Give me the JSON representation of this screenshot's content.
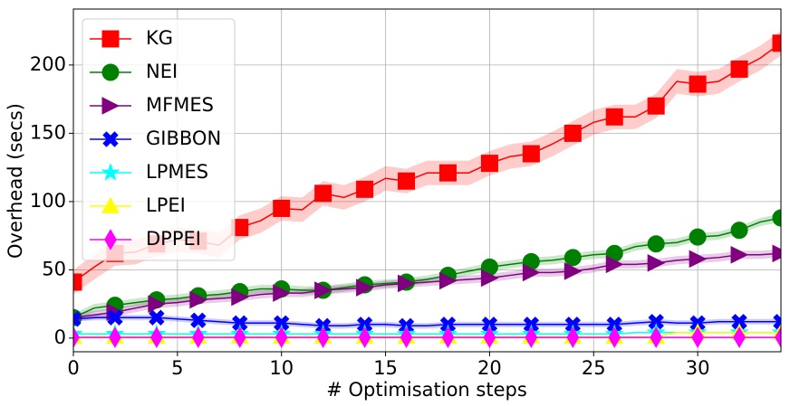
{
  "chart_data": {
    "type": "line",
    "xlabel": "# Optimisation steps",
    "ylabel": "Overhead (secs)",
    "x": [
      0,
      1,
      2,
      3,
      4,
      5,
      6,
      7,
      8,
      9,
      10,
      11,
      12,
      13,
      14,
      15,
      16,
      17,
      18,
      19,
      20,
      21,
      22,
      23,
      24,
      25,
      26,
      27,
      28,
      29,
      30,
      31,
      32,
      33,
      34
    ],
    "xlim": [
      0,
      34
    ],
    "ylim": [
      -10,
      241
    ],
    "xticks": [
      0,
      5,
      10,
      15,
      20,
      25,
      30
    ],
    "yticks": [
      0,
      50,
      100,
      150,
      200
    ],
    "grid": true,
    "legend": "upper left",
    "marker_every": 2,
    "series": [
      {
        "name": "KG",
        "color": "#ff0000",
        "marker": "s",
        "error": 9,
        "values": [
          41,
          52,
          62,
          63,
          69,
          72,
          71,
          68,
          81,
          86,
          95,
          94,
          106,
          103,
          109,
          117,
          115,
          121,
          121,
          121,
          128,
          133,
          135,
          142,
          150,
          158,
          162,
          162,
          170,
          188,
          186,
          188,
          197,
          205,
          216
        ]
      },
      {
        "name": "NEI",
        "color": "#008000",
        "marker": "o",
        "error": 3,
        "values": [
          15,
          22,
          24,
          26,
          28,
          29,
          31,
          32,
          34,
          36,
          36,
          35,
          35,
          37,
          39,
          40,
          41,
          43,
          46,
          49,
          52,
          54,
          56,
          57,
          59,
          61,
          62,
          67,
          69,
          70,
          74,
          75,
          79,
          85,
          88
        ]
      },
      {
        "name": "MFMES",
        "color": "#800080",
        "marker": ">",
        "error": 3,
        "values": [
          15,
          17,
          19,
          22,
          25,
          26,
          28,
          29,
          30,
          32,
          33,
          33,
          35,
          36,
          37,
          39,
          40,
          41,
          42,
          43,
          44,
          46,
          48,
          48,
          49,
          51,
          54,
          54,
          55,
          57,
          58,
          59,
          61,
          61,
          62
        ]
      },
      {
        "name": "GIBBON",
        "color": "#0000ff",
        "marker": "X",
        "error": 2,
        "values": [
          14,
          15,
          15,
          15,
          15,
          14,
          13,
          12,
          11,
          11,
          11,
          10,
          9,
          9,
          10,
          10,
          9,
          9,
          10,
          10,
          10,
          10,
          10,
          10,
          10,
          10,
          10,
          11,
          12,
          11,
          11,
          12,
          12,
          12,
          12
        ]
      },
      {
        "name": "LPMES",
        "color": "#00ffff",
        "marker": "*",
        "error": 0.5,
        "values": [
          3,
          3,
          3,
          3,
          3,
          3,
          3,
          3,
          3,
          3,
          3,
          3,
          3,
          3,
          3,
          3,
          3,
          3,
          3,
          3,
          3,
          3,
          3,
          3,
          3,
          3,
          3,
          4,
          4,
          4,
          4,
          4,
          4,
          4,
          4
        ]
      },
      {
        "name": "LPEI",
        "color": "#ffff00",
        "marker": "^",
        "error": 0.5,
        "values": [
          1,
          1,
          1,
          1,
          1,
          1,
          1,
          1,
          1,
          1,
          1,
          1,
          1,
          1,
          1,
          1,
          1,
          1,
          1,
          1,
          1,
          1,
          1,
          1,
          1,
          1,
          1,
          1,
          1,
          4,
          4,
          4,
          4,
          4,
          4
        ]
      },
      {
        "name": "DPPEI",
        "color": "#ff00ff",
        "marker": "d",
        "error": 0.3,
        "values": [
          0.5,
          0.5,
          0.5,
          0.5,
          0.5,
          0.5,
          0.5,
          0.5,
          0.5,
          0.5,
          0.5,
          0.5,
          0.5,
          0.5,
          0.5,
          0.5,
          0.5,
          0.5,
          0.5,
          0.5,
          0.5,
          0.5,
          0.5,
          0.5,
          0.5,
          0.5,
          0.5,
          0.5,
          0.5,
          0.5,
          0.5,
          0.5,
          0.5,
          0.5,
          0.5
        ]
      }
    ]
  }
}
